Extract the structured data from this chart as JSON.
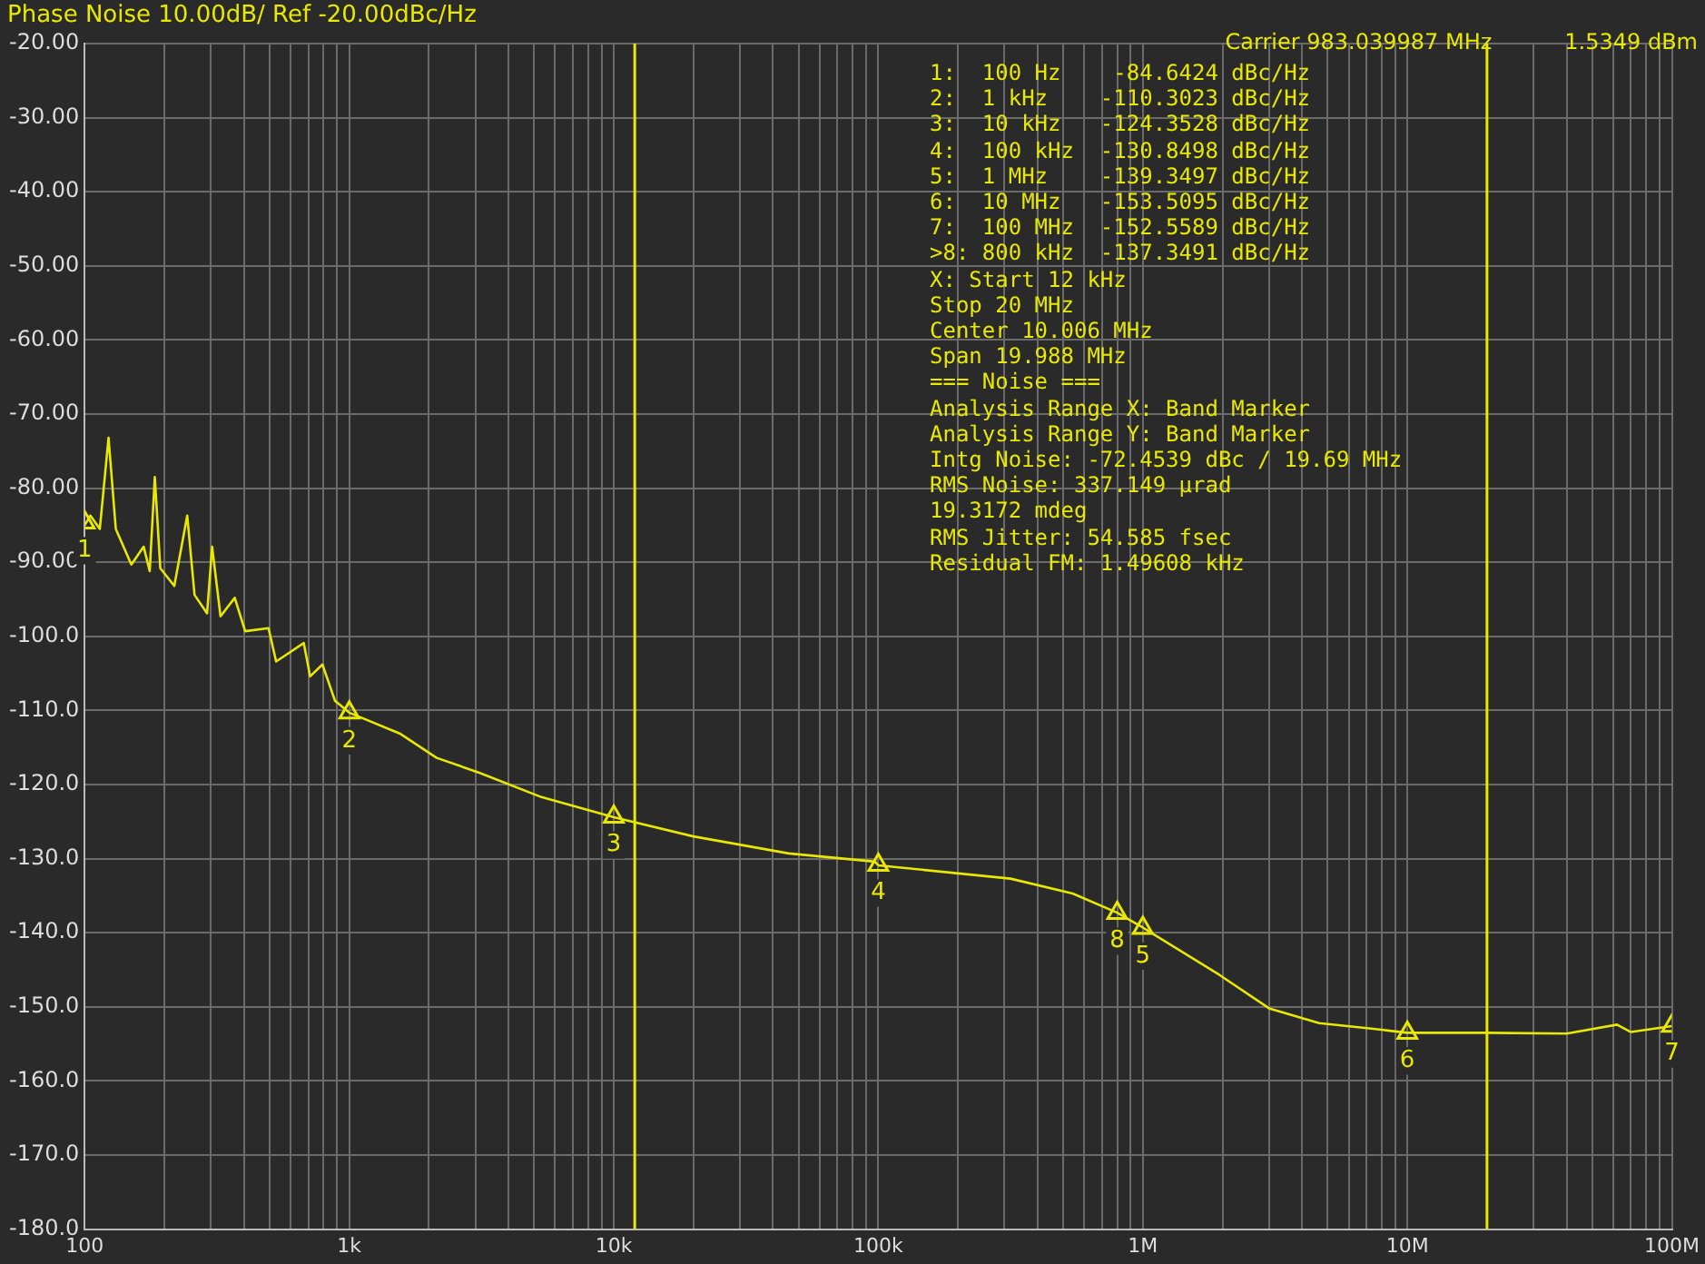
{
  "chart_data": {
    "type": "line",
    "title": "Phase Noise 10.00dB/ Ref -20.00dBc/Hz",
    "annotations": [
      "Carrier 983.039987 MHz",
      "1.5349 dBm",
      "1:  100 Hz    -84.6424 dBc/Hz",
      "2:  1 kHz    -110.3023 dBc/Hz",
      "3:  10 kHz   -124.3528 dBc/Hz",
      "4:  100 kHz  -130.8498 dBc/Hz",
      "5:  1 MHz    -139.3497 dBc/Hz",
      "6:  10 MHz   -153.5095 dBc/Hz",
      "7:  100 MHz  -152.5589 dBc/Hz",
      ">8: 800 kHz  -137.3491 dBc/Hz",
      "X: Start 12 kHz",
      "Stop 20 MHz",
      "Center 10.006 MHz",
      "Span 19.988 MHz",
      "=== Noise ===",
      "Analysis Range X: Band Marker",
      "Analysis Range Y: Band Marker",
      "Intg Noise: -72.4539 dBc / 19.69 MHz",
      "RMS Noise: 337.149 µrad",
      "19.3172 mdeg",
      "RMS Jitter: 54.585 fsec",
      "Residual FM: 1.49608 kHz",
      {
        "text": "1",
        "x": 100,
        "y": -84.6424
      },
      {
        "text": "2",
        "x": 1000,
        "y": -110.3023
      },
      {
        "text": "3",
        "x": 10000,
        "y": -124.3528
      },
      {
        "text": "4",
        "x": 100000,
        "y": -130.8498
      },
      {
        "text": "5",
        "x": 1000000,
        "y": -139.3497
      },
      {
        "text": "6",
        "x": 10000000,
        "y": -153.5095
      },
      {
        "text": "7",
        "x": 100000000,
        "y": -152.5589
      },
      {
        "text": "8",
        "x": 800000,
        "y": -137.3491
      }
    ],
    "series": [
      {
        "color": "#e8e800",
        "marker": "none",
        "x": [
          100,
          105,
          114,
          123,
          131,
          150,
          167,
          176,
          184,
          193,
          218,
          244,
          260,
          290,
          303,
          326,
          369,
          404,
          495,
          529,
          673,
          711,
          792,
          883,
          1000,
          1550,
          2140,
          3100,
          5330,
          10000,
          20000,
          45900,
          97000,
          100000,
          316000,
          543000,
          800000,
          1000000,
          1950000,
          3000000,
          4640000,
          7170000,
          10000000,
          20000000,
          40000000,
          62000000,
          70000000,
          100000000
        ],
        "values": [
          -85,
          -83.7,
          -85.5,
          -73.2,
          -85.5,
          -90.3,
          -87.9,
          -91.2,
          -78.5,
          -90.8,
          -93.2,
          -83.7,
          -94.4,
          -96.9,
          -87.9,
          -97.3,
          -94.8,
          -99.3,
          -98.9,
          -103.4,
          -100.9,
          -105.4,
          -103.8,
          -108.7,
          -110.3,
          -113.1,
          -116.4,
          -118.4,
          -121.7,
          -124.4,
          -127,
          -129.3,
          -130.4,
          -130.9,
          -132.7,
          -134.7,
          -137.3,
          -139.3,
          -145.7,
          -150.2,
          -152.2,
          -152.9,
          -153.5,
          -153.5,
          -153.6,
          -152.4,
          -153.4,
          -152.6
        ]
      },
      {
        "type": "scatter",
        "color": "#e8e800",
        "marker": "triangle",
        "x": [
          100,
          1000,
          10000,
          100000,
          1000000,
          10000000,
          100000000,
          800000
        ],
        "values": [
          -84.6424,
          -110.3023,
          -124.3528,
          -130.8498,
          -139.3497,
          -153.5095,
          -152.5589,
          -137.3491
        ]
      }
    ],
    "log": "x",
    "xlim": [
      100,
      100000000
    ],
    "xticks": [
      {
        "value": 100,
        "label": "100"
      },
      {
        "value": 200,
        "label": null
      },
      {
        "value": 300,
        "label": null
      },
      {
        "value": 400,
        "label": null
      },
      {
        "value": 500,
        "label": null
      },
      {
        "value": 600,
        "label": null
      },
      {
        "value": 700,
        "label": null
      },
      {
        "value": 800,
        "label": null
      },
      {
        "value": 900,
        "label": null
      },
      {
        "value": 1000,
        "label": "1k"
      },
      {
        "value": 2000,
        "label": null
      },
      {
        "value": 3000,
        "label": null
      },
      {
        "value": 4000,
        "label": null
      },
      {
        "value": 5000,
        "label": null
      },
      {
        "value": 6000,
        "label": null
      },
      {
        "value": 7000,
        "label": null
      },
      {
        "value": 8000,
        "label": null
      },
      {
        "value": 9000,
        "label": null
      },
      {
        "value": 10000,
        "label": "10k"
      },
      {
        "value": 20000,
        "label": null
      },
      {
        "value": 30000,
        "label": null
      },
      {
        "value": 40000,
        "label": null
      },
      {
        "value": 50000,
        "label": null
      },
      {
        "value": 60000,
        "label": null
      },
      {
        "value": 70000,
        "label": null
      },
      {
        "value": 80000,
        "label": null
      },
      {
        "value": 90000,
        "label": null
      },
      {
        "value": 100000,
        "label": "100k"
      },
      {
        "value": 200000,
        "label": null
      },
      {
        "value": 300000,
        "label": null
      },
      {
        "value": 400000,
        "label": null
      },
      {
        "value": 500000,
        "label": null
      },
      {
        "value": 600000,
        "label": null
      },
      {
        "value": 700000,
        "label": null
      },
      {
        "value": 800000,
        "label": null
      },
      {
        "value": 900000,
        "label": null
      },
      {
        "value": 1000000,
        "label": "1M"
      },
      {
        "value": 2000000,
        "label": null
      },
      {
        "value": 3000000,
        "label": null
      },
      {
        "value": 4000000,
        "label": null
      },
      {
        "value": 5000000,
        "label": null
      },
      {
        "value": 6000000,
        "label": null
      },
      {
        "value": 7000000,
        "label": null
      },
      {
        "value": 8000000,
        "label": null
      },
      {
        "value": 9000000,
        "label": null
      },
      {
        "value": 10000000,
        "label": "10M"
      },
      {
        "value": 20000000,
        "label": null
      },
      {
        "value": 30000000,
        "label": null
      },
      {
        "value": 40000000,
        "label": null
      },
      {
        "value": 50000000,
        "label": null
      },
      {
        "value": 60000000,
        "label": null
      },
      {
        "value": 70000000,
        "label": null
      },
      {
        "value": 80000000,
        "label": null
      },
      {
        "value": 90000000,
        "label": null
      },
      {
        "value": 100000000,
        "label": "100M"
      }
    ],
    "ylim": [
      -180,
      -20
    ],
    "yticks": [
      {
        "value": -20,
        "label": "-20.00"
      },
      {
        "value": -30,
        "label": "-30.00"
      },
      {
        "value": -40,
        "label": "-40.00"
      },
      {
        "value": -50,
        "label": "-50.00"
      },
      {
        "value": -60,
        "label": "-60.00"
      },
      {
        "value": -70,
        "label": "-70.00"
      },
      {
        "value": -80,
        "label": "-80.00"
      },
      {
        "value": -90,
        "label": "-90.00"
      },
      {
        "value": -100,
        "label": "-100.0"
      },
      {
        "value": -110,
        "label": "-110.0"
      },
      {
        "value": -120,
        "label": "-120.0"
      },
      {
        "value": -130,
        "label": "-130.0"
      },
      {
        "value": -140,
        "label": "-140.0"
      },
      {
        "value": -150,
        "label": "-150.0"
      },
      {
        "value": -160,
        "label": "-160.0"
      },
      {
        "value": -170,
        "label": "-170.0"
      },
      {
        "value": -180,
        "label": "-180.0"
      }
    ],
    "grid": true,
    "legend": false,
    "ref_lines": [
      {
        "axis": "x",
        "value": 12000,
        "label": null,
        "color": "#e8e800"
      },
      {
        "axis": "x",
        "value": 20000000,
        "label": null,
        "color": "#e8e800"
      }
    ]
  }
}
